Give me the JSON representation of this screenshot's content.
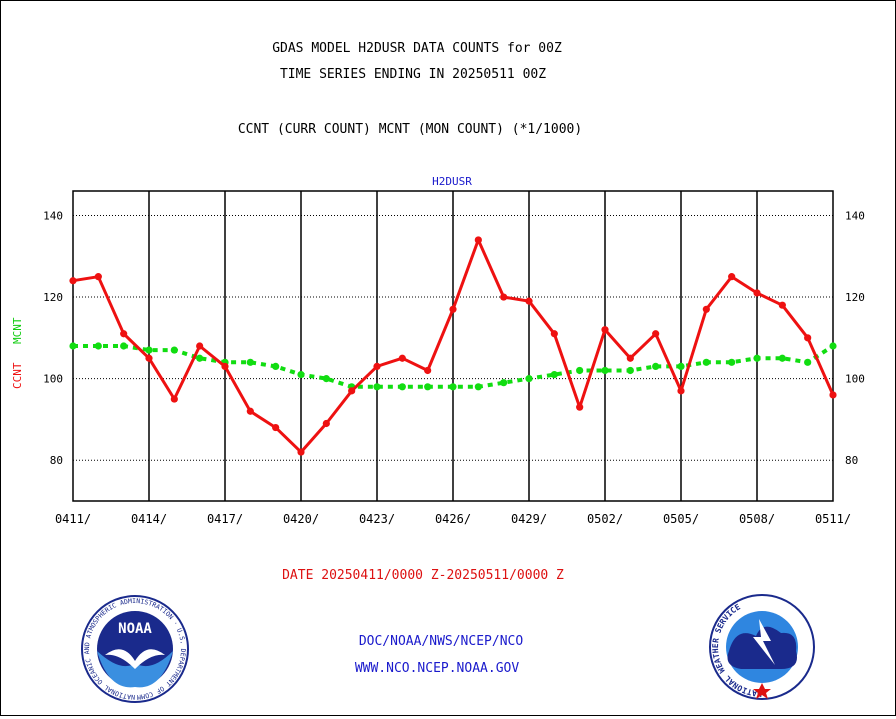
{
  "header": {
    "title_line1": "GDAS MODEL H2DUSR DATA COUNTS for 00Z",
    "title_line2": "TIME SERIES ENDING IN 20250511 00Z",
    "subtitle": "CCNT (CURR COUNT) MCNT (MON COUNT) (*1/1000)"
  },
  "footer": {
    "date_range": "DATE 20250411/0000 Z-20250511/0000 Z",
    "org_line": "DOC/NOAA/NWS/NCEP/NCO",
    "url_line": "WWW.NCO.NCEP.NOAA.GOV"
  },
  "logos": {
    "noaa_text": "NOAA",
    "noaa_ring_text": "NATIONAL OCEANIC AND ATMOSPHERIC ADMINISTRATION · U.S. DEPARTMENT OF COMMERCE",
    "nws_ring_text": "NATIONAL WEATHER SERVICE"
  },
  "colors": {
    "ccnt": "#ee1111",
    "mcnt": "#11dd11",
    "title_blue": "#1a1acc",
    "date_red": "#dd1111"
  },
  "chart_data": {
    "type": "line",
    "title": "H2DUSR",
    "ylabel_series": [
      "CCNT",
      "MCNT"
    ],
    "ylim": [
      70,
      146
    ],
    "yticks": [
      80,
      100,
      120,
      140
    ],
    "x_tick_labels": [
      "0411/",
      "0414/",
      "0417/",
      "0420/",
      "0423/",
      "0426/",
      "0429/",
      "0502/",
      "0505/",
      "0508/",
      "0511/"
    ],
    "x": [
      "0411",
      "0412",
      "0413",
      "0414",
      "0415",
      "0416",
      "0417",
      "0418",
      "0419",
      "0420",
      "0421",
      "0422",
      "0423",
      "0424",
      "0425",
      "0426",
      "0427",
      "0428",
      "0429",
      "0430",
      "0501",
      "0502",
      "0503",
      "0504",
      "0505",
      "0506",
      "0507",
      "0508",
      "0509",
      "0510",
      "0511"
    ],
    "series": [
      {
        "name": "CCNT",
        "values": [
          124,
          125,
          111,
          105,
          95,
          108,
          103,
          92,
          88,
          82,
          89,
          97,
          103,
          105,
          102,
          117,
          134,
          120,
          119,
          111,
          93,
          112,
          105,
          111,
          97,
          117,
          125,
          121,
          118,
          110,
          96
        ]
      },
      {
        "name": "MCNT",
        "values": [
          108,
          108,
          108,
          107,
          107,
          105,
          104,
          104,
          103,
          101,
          100,
          98,
          98,
          98,
          98,
          98,
          98,
          99,
          100,
          101,
          102,
          102,
          102,
          103,
          103,
          104,
          104,
          105,
          105,
          104,
          108
        ]
      }
    ],
    "grid": true
  }
}
